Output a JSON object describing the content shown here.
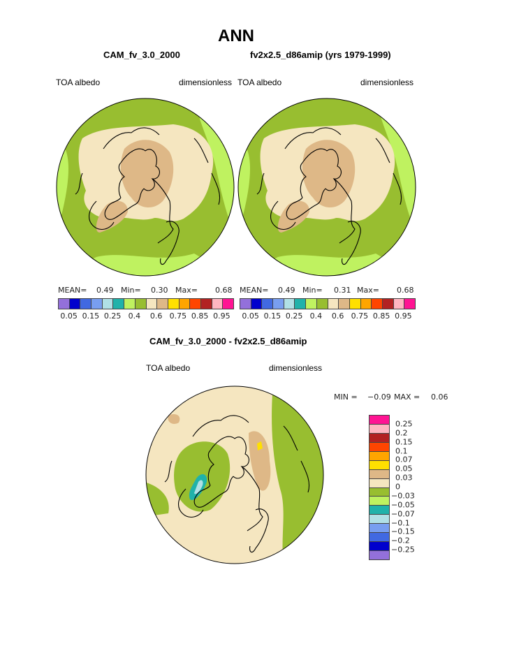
{
  "title": "ANN",
  "panels": [
    {
      "case": "CAM_fv_3.0_2000",
      "variable": "TOA albedo",
      "units": "dimensionless",
      "mean_label": "MEAN=",
      "mean": "0.49",
      "min_label": "Min=",
      "min": "0.30",
      "max_label": "Max=",
      "max": "0.68"
    },
    {
      "case": "fv2x2.5_d86amip (yrs 1979-1999)",
      "variable": "TOA albedo",
      "units": "dimensionless",
      "mean_label": "MEAN=",
      "mean": "0.49",
      "min_label": "Min=",
      "min": "0.31",
      "max_label": "Max=",
      "max": "0.68"
    }
  ],
  "diff": {
    "title": "CAM_fv_3.0_2000 - fv2x2.5_d86amip",
    "variable": "TOA albedo",
    "units": "dimensionless",
    "min_label": "MIN =",
    "min": "−0.09",
    "max_label": "MAX =",
    "max": "0.06"
  },
  "colors": [
    "#9370db",
    "#0000cd",
    "#4169e1",
    "#789ef0",
    "#b0e0e6",
    "#20b2aa",
    "#bff260",
    "#98be30",
    "#f5e6c0",
    "#deb887",
    "#ffe000",
    "#ffa500",
    "#ff4500",
    "#b22222",
    "#ffb6c1",
    "#ff1493"
  ],
  "bar_labels": [
    "0.05",
    "0.15",
    "0.25",
    "0.4",
    "0.6",
    "0.75",
    "0.85",
    "0.95"
  ],
  "diff_labels": [
    "0.25",
    "0.2",
    "0.15",
    "0.1",
    "0.07",
    "0.05",
    "0.03",
    "0",
    "−0.03",
    "−0.05",
    "−0.07",
    "−0.1",
    "−0.15",
    "−0.2",
    "−0.25"
  ]
}
